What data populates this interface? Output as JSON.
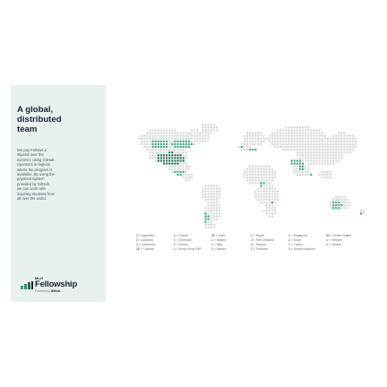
{
  "panel": {
    "heading_lines": [
      "A global,",
      "distributed",
      "team"
    ],
    "body_lines": [
      "We pay Fellows a",
      "stipend over the",
      "summer, using GitHub",
      "Sponsors in regions",
      "where the program is",
      "available. By using the",
      "payment system",
      "provided by GitHub,",
      "we can work with",
      "inspiring students from",
      "all over the world."
    ],
    "logo": {
      "small": "MLH",
      "name": "Fellowship",
      "powered_prefix": "Powered by",
      "powered_brand": "GitHub"
    }
  },
  "colors": {
    "panel_bg": "#e9f1ee",
    "dot_land": "#d3d5d9",
    "dot_highlight": "#3aa57d",
    "dot_dense": "#1d6e52",
    "text_dark": "#1b2230"
  },
  "legend": {
    "columns": [
      [
        {
          "n": "2",
          "label": "Argentina"
        },
        {
          "n": "2",
          "label": "Australia"
        },
        {
          "n": "1",
          "label": "Cameroon"
        },
        {
          "n": "15",
          "label": "Canada"
        }
      ],
      [
        {
          "n": "1",
          "label": "France"
        },
        {
          "n": "1",
          "label": "Germany"
        },
        {
          "n": "1",
          "label": "Ghana"
        },
        {
          "n": "1",
          "label": "Hong Kong SAR"
        }
      ],
      [
        {
          "n": "30",
          "label": "India"
        },
        {
          "n": "1",
          "label": "Ireland"
        },
        {
          "n": "1",
          "label": "Italy"
        },
        {
          "n": "2",
          "label": "Mexico"
        }
      ],
      [
        {
          "n": "1",
          "label": "Nepal"
        },
        {
          "n": "2",
          "label": "New Zealand"
        },
        {
          "n": "3",
          "label": "Nigeria"
        },
        {
          "n": "2",
          "label": "Pakistan"
        }
      ],
      [
        {
          "n": "1",
          "label": "Singapore"
        },
        {
          "n": "2",
          "label": "Spain"
        },
        {
          "n": "1",
          "label": "Turkey"
        },
        {
          "n": "2",
          "label": "United Kingdom"
        }
      ],
      [
        {
          "n": "33",
          "label": "United States"
        },
        {
          "n": "1",
          "label": "Vietnam"
        },
        {
          "n": "1",
          "label": "Zambia"
        }
      ]
    ]
  }
}
